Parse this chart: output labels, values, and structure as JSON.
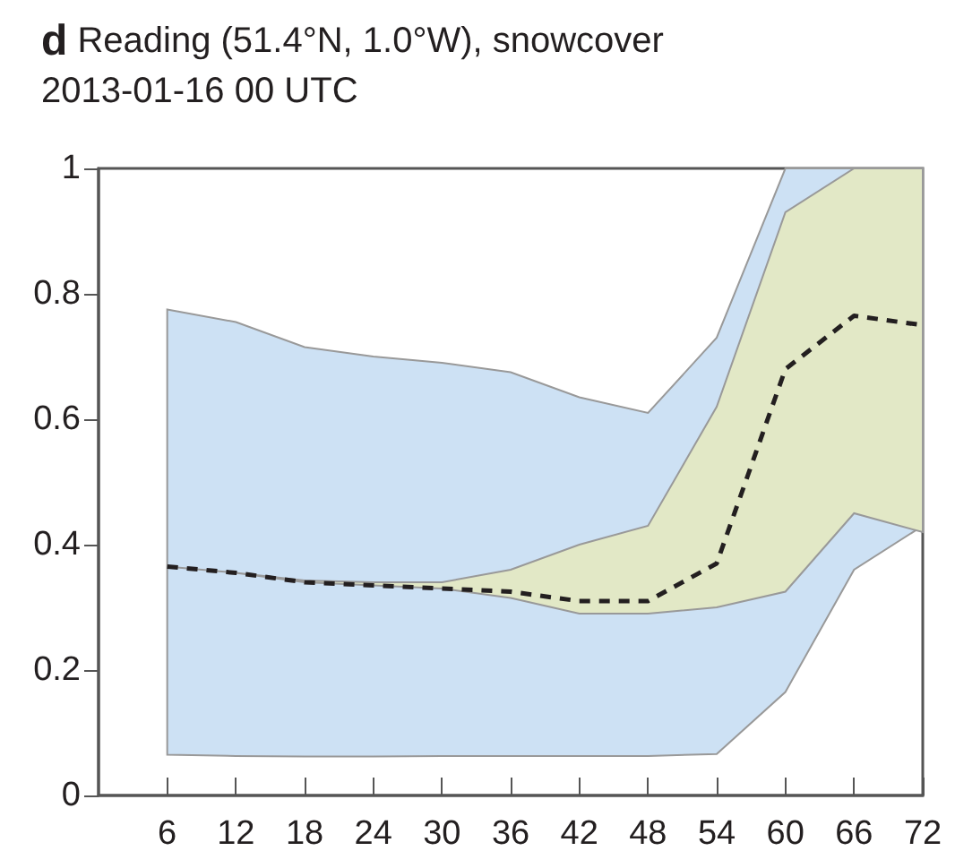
{
  "chart_data": {
    "type": "line",
    "title": "d Reading (51.4°N, 1.0°W), snowcover",
    "subtitle": "2013-01-16 00 UTC",
    "x": [
      6,
      12,
      18,
      24,
      30,
      36,
      42,
      48,
      54,
      60,
      66,
      72
    ],
    "series": [
      {
        "type": "area",
        "color": "#cde1f4",
        "values": [
          null,
          null,
          null,
          null,
          null,
          null,
          null,
          null,
          null,
          null,
          null,
          null
        ],
        "lower": [
          0.065,
          0.063,
          0.062,
          0.062,
          0.063,
          0.063,
          0.063,
          0.063,
          0.066,
          0.165,
          0.36,
          0.43
        ],
        "upper": [
          0.775,
          0.755,
          0.715,
          0.7,
          0.69,
          0.675,
          0.635,
          0.61,
          0.73,
          1.0,
          1.0,
          1.0
        ]
      },
      {
        "type": "area",
        "color": "#e2e8c6",
        "values": [
          null,
          null,
          null,
          null,
          null,
          null,
          null,
          null,
          null,
          null,
          null,
          null
        ],
        "lower": [
          0.365,
          0.355,
          0.34,
          0.335,
          0.33,
          0.315,
          0.29,
          0.29,
          0.3,
          0.325,
          0.45,
          0.42
        ],
        "upper": [
          0.365,
          0.355,
          0.343,
          0.34,
          0.34,
          0.36,
          0.4,
          0.43,
          0.62,
          0.93,
          1.0,
          1.0
        ]
      },
      {
        "color": "#231f20",
        "line_style": "dashed",
        "values": [
          0.365,
          0.355,
          0.34,
          0.335,
          0.33,
          0.325,
          0.31,
          0.31,
          0.37,
          0.68,
          0.765,
          0.75
        ]
      }
    ],
    "xlim": [
      0,
      72
    ],
    "xticks": [
      6,
      12,
      18,
      24,
      30,
      36,
      42,
      48,
      54,
      60,
      66,
      72
    ],
    "ylim": [
      0,
      1
    ],
    "yticks": [
      0,
      0.2,
      0.4,
      0.6,
      0.8,
      1
    ],
    "grid": false,
    "marker": "none"
  }
}
